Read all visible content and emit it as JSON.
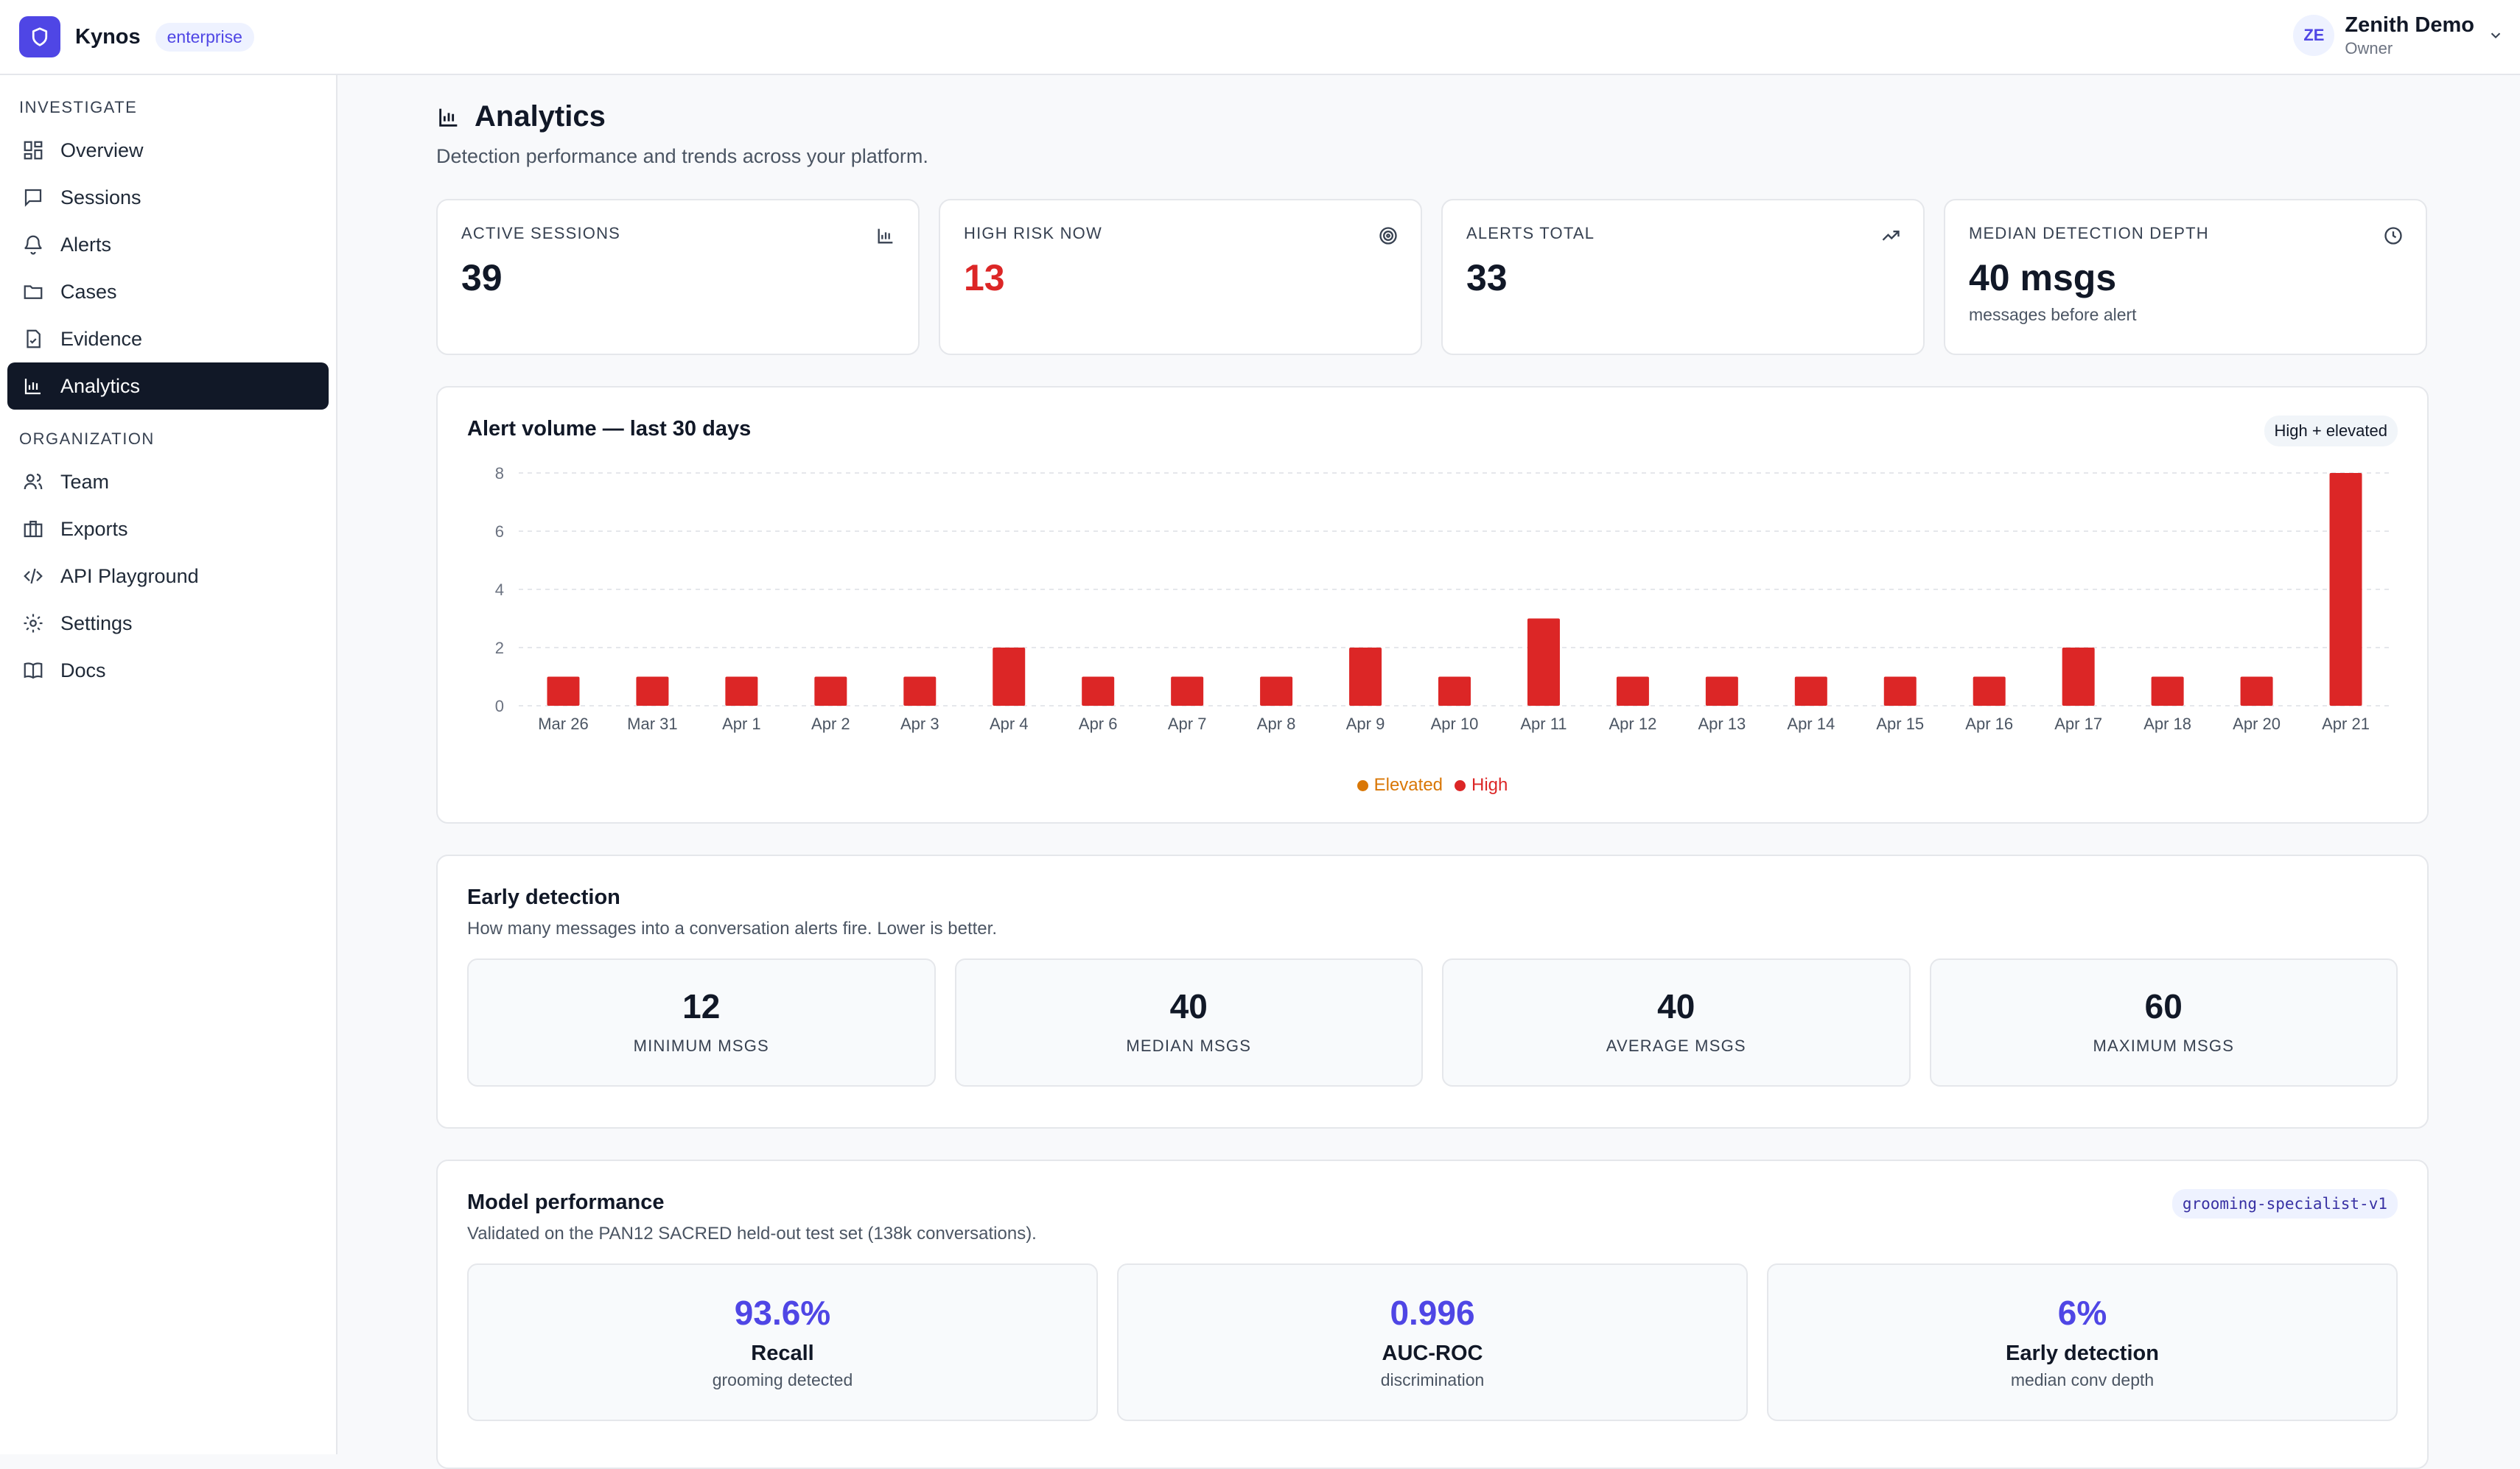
{
  "header": {
    "brand": "Kynos",
    "plan": "enterprise",
    "user": {
      "initials": "ZE",
      "name": "Zenith Demo",
      "role": "Owner"
    }
  },
  "sidebar": {
    "sections": [
      {
        "title": "INVESTIGATE",
        "items": [
          {
            "label": "Overview",
            "icon": "grid-icon"
          },
          {
            "label": "Sessions",
            "icon": "message-icon"
          },
          {
            "label": "Alerts",
            "icon": "bell-icon"
          },
          {
            "label": "Cases",
            "icon": "folder-icon"
          },
          {
            "label": "Evidence",
            "icon": "file-check-icon"
          },
          {
            "label": "Analytics",
            "icon": "bar-chart-icon",
            "active": true
          }
        ]
      },
      {
        "title": "ORGANIZATION",
        "items": [
          {
            "label": "Team",
            "icon": "users-icon"
          },
          {
            "label": "Exports",
            "icon": "briefcase-icon"
          },
          {
            "label": "API Playground",
            "icon": "code-icon"
          },
          {
            "label": "Settings",
            "icon": "gear-icon"
          },
          {
            "label": "Docs",
            "icon": "book-icon"
          }
        ]
      }
    ]
  },
  "page": {
    "title": "Analytics",
    "subtitle": "Detection performance and trends across your platform."
  },
  "kpis": [
    {
      "label": "ACTIVE SESSIONS",
      "value": "39",
      "icon": "bar-chart-icon"
    },
    {
      "label": "HIGH RISK NOW",
      "value": "13",
      "icon": "target-icon",
      "color": "#dc2626"
    },
    {
      "label": "ALERTS TOTAL",
      "value": "33",
      "icon": "trending-up-icon"
    },
    {
      "label": "MEDIAN DETECTION DEPTH",
      "value": "40 msgs",
      "hint": "messages before alert",
      "icon": "clock-icon"
    }
  ],
  "alert_chart": {
    "title": "Alert volume — last 30 days",
    "badge": "High + elevated",
    "legend": [
      {
        "name": "Elevated",
        "color": "#d97706"
      },
      {
        "name": "High",
        "color": "#dc2626"
      }
    ]
  },
  "chart_data": {
    "type": "bar",
    "title": "Alert volume — last 30 days",
    "categories": [
      "Mar 26",
      "Mar 31",
      "Apr 1",
      "Apr 2",
      "Apr 3",
      "Apr 4",
      "Apr 6",
      "Apr 7",
      "Apr 8",
      "Apr 9",
      "Apr 10",
      "Apr 11",
      "Apr 12",
      "Apr 13",
      "Apr 14",
      "Apr 15",
      "Apr 16",
      "Apr 17",
      "Apr 18",
      "Apr 20",
      "Apr 21"
    ],
    "series": [
      {
        "name": "Elevated",
        "color": "#d97706",
        "values": [
          0,
          0,
          0,
          0,
          0,
          0,
          0,
          0,
          0,
          0,
          0,
          0,
          0,
          0,
          0,
          0,
          0,
          0,
          0,
          0,
          0
        ]
      },
      {
        "name": "High",
        "color": "#dc2626",
        "values": [
          1,
          1,
          1,
          1,
          1,
          2,
          1,
          1,
          1,
          2,
          1,
          3,
          1,
          1,
          1,
          1,
          1,
          2,
          1,
          1,
          8
        ]
      }
    ],
    "yticks": [
      0,
      2,
      4,
      6,
      8
    ],
    "ylim": [
      0,
      8
    ],
    "grid": true,
    "legend_position": "bottom"
  },
  "early_detection": {
    "title": "Early detection",
    "description": "How many messages into a conversation alerts fire. Lower is better.",
    "stats": [
      {
        "value": "12",
        "label": "MINIMUM MSGS"
      },
      {
        "value": "40",
        "label": "MEDIAN MSGS"
      },
      {
        "value": "40",
        "label": "AVERAGE MSGS"
      },
      {
        "value": "60",
        "label": "MAXIMUM MSGS"
      }
    ]
  },
  "model_performance": {
    "title": "Model performance",
    "description": "Validated on the PAN12 SACRED held-out test set (138k conversations).",
    "model_tag": "grooming-specialist-v1",
    "metrics": [
      {
        "value": "93.6%",
        "name": "Recall",
        "sub": "grooming detected"
      },
      {
        "value": "0.996",
        "name": "AUC-ROC",
        "sub": "discrimination"
      },
      {
        "value": "6%",
        "name": "Early detection",
        "sub": "median conv depth"
      }
    ]
  }
}
